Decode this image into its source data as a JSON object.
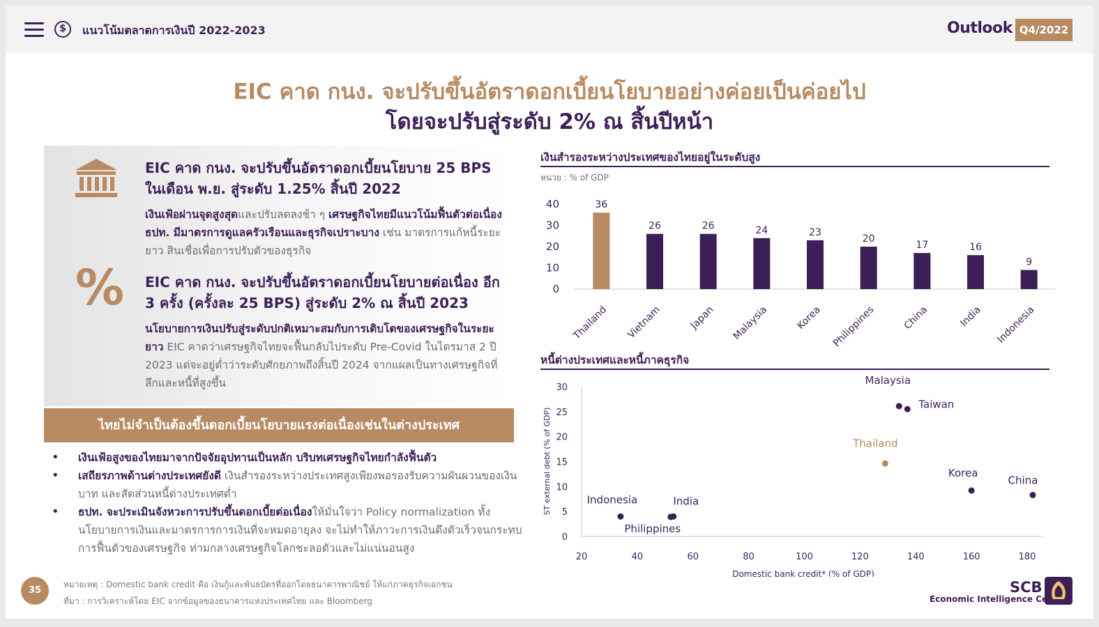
{
  "header": {
    "section_title": "แนวโน้มตลาดการเงินปี 2022-2023",
    "outlook_label": "Outlook",
    "quarter_badge": "Q4/2022",
    "coin_symbol": "$"
  },
  "headline": {
    "line1": "EIC คาด กนง. จะปรับขึ้นอัตราดอกเบี้ยนโยบายอย่างค่อยเป็นค่อยไป",
    "line2": "โดยจะปรับสู่ระดับ 2% ณ สิ้นปีหน้า"
  },
  "left": {
    "icon1": "bank-icon",
    "block1_title": "EIC คาด กนง. จะปรับขึ้นอัตราดอกเบี้ยนโยบาย 25 BPS ในเดือน พ.ย. สู่ระดับ 1.25% สิ้นปี 2022",
    "block1_text_bold1": "เงินเฟ้อผ่านจุดสูงสุด",
    "block1_text1": "และปรับลดลงช้า ๆ ",
    "block1_text_bold2": "เศรษฐกิจไทยมีแนวโน้มฟื้นตัวต่อเนื่องธปท. มีมาตรการดูแลครัวเรือนและธุรกิจเปราะบาง",
    "block1_text2": " เช่น มาตรการแก้หนี้ระยะยาว สินเชื่อเพื่อการปรับตัวของธุรกิจ",
    "icon2": "%",
    "block2_title": "EIC คาด กนง. จะปรับขึ้นอัตราดอกเบี้ยนโยบายต่อเนื่อง อีก 3 ครั้ง (ครั้งละ 25 BPS) สู่ระดับ 2% ณ สิ้นปี 2023",
    "block2_text_bold": "นโยบายการเงินปรับสู่ระดับปกติเหมาะสมกับการเติบโตของเศรษฐกิจในระยะยาว",
    "block2_text": " EIC คาดว่าเศรษฐกิจไทยจะฟื้นกลับไประดับ Pre-Covid ในไตรมาส 2 ปี 2023 แต่จะอยู่ต่ำว่าระดับศักยภาพถึงสิ้นปี 2024 จากแผลเป็นทางเศรษฐกิจที่ลึกและหนี้ที่สูงขึ้น",
    "banner": "ไทยไม่จำเป็นต้องขึ้นดอกเบี้ยนโยบายแรงต่อเนื่องเช่นในต่างประเทศ",
    "bullets": [
      {
        "bold": "เงินเฟ้อสูงของไทยมาจากปัจจัยอุปทานเป็นหลัก บริบทเศรษฐกิจไทยกำลังฟื้นตัว",
        "text": ""
      },
      {
        "bold": "เสถียรภาพด้านต่างประเทศยังดี",
        "text": " เงินสำรองระหว่างประเทศสูงเพียงพอรองรับความผันผวนของเงินบาท และสัดส่วนหนี้ต่างประเทศต่ำ"
      },
      {
        "bold": "ธปท. จะประเมินจังหวะการปรับขึ้นดอกเบี้ยต่อเนื่อง",
        "text": "ให้มั่นใจว่า Policy normalization ทั้งนโยบายการเงินและมาตรการการเงินที่จะหมดอายุลง จะไม่ทำให้ภาวะการเงินตึงตัวเร็วจนกระทบการฟื้นตัวของเศรษฐกิจ ท่ามกลางเศรษฐกิจโลกชะลอตัวและไม่แน่นอนสูง"
      }
    ]
  },
  "footer": {
    "note": "หมายเหตุ : Domestic bank credit คือ เงินกู้และพันธบัตรที่ออกโดยธนาคารพาณิชย์ ให้แก่ภาคธุรกิจเอกชน",
    "source": "ที่มา : การวิเคราะห์โดย EIC จากข้อมูลของธนาคารแห่งประเทศไทย และ Bloomberg",
    "page_number": "35",
    "brand": "SCB",
    "brand_sub": "Economic Intelligence Center"
  },
  "chart_data": [
    {
      "type": "bar",
      "title": "เงินสำรองระหว่างประเทศของไทยอยู่ในระดับสูง",
      "unit": "หน่วย : % of GDP",
      "categories": [
        "Thailand",
        "Vietnam",
        "Japan",
        "Malaysia",
        "Korea",
        "Philippines",
        "China",
        "India",
        "Indonesia"
      ],
      "values": [
        36,
        26,
        26,
        24,
        23,
        20,
        17,
        16,
        9
      ],
      "ylim": [
        0,
        40
      ],
      "yticks": [
        0,
        10,
        20,
        30,
        40
      ],
      "highlight": "Thailand",
      "colors": {
        "highlight": "#b88a62",
        "default": "#3d1f57"
      }
    },
    {
      "type": "scatter",
      "title": "หนี้ต่างประเทศและหนี้ภาคธุรกิจ",
      "xlabel": "Domestic bank credit* (% of GDP)",
      "ylabel": "ST external debt  (% of GDP)",
      "xlim": [
        20,
        180
      ],
      "ylim": [
        0,
        30
      ],
      "xticks": [
        20,
        40,
        60,
        80,
        100,
        120,
        140,
        160,
        180
      ],
      "yticks": [
        0,
        5,
        10,
        15,
        20,
        25,
        30
      ],
      "points": [
        {
          "label": "Malaysia",
          "x": 134,
          "y": 26.1,
          "highlight": false
        },
        {
          "label": "Taiwan",
          "x": 137,
          "y": 25.5,
          "highlight": false
        },
        {
          "label": "Thailand",
          "x": 129,
          "y": 14.6,
          "highlight": true
        },
        {
          "label": "Korea",
          "x": 160,
          "y": 9.2,
          "highlight": false
        },
        {
          "label": "China",
          "x": 182,
          "y": 8.3,
          "highlight": false
        },
        {
          "label": "Indonesia",
          "x": 34,
          "y": 4,
          "highlight": false
        },
        {
          "label": "India",
          "x": 53,
          "y": 4,
          "highlight": false
        },
        {
          "label": "Philippines",
          "x": 52,
          "y": 3.9,
          "highlight": false
        }
      ],
      "colors": {
        "highlight": "#b88a62",
        "default": "#3d1f57"
      }
    }
  ]
}
